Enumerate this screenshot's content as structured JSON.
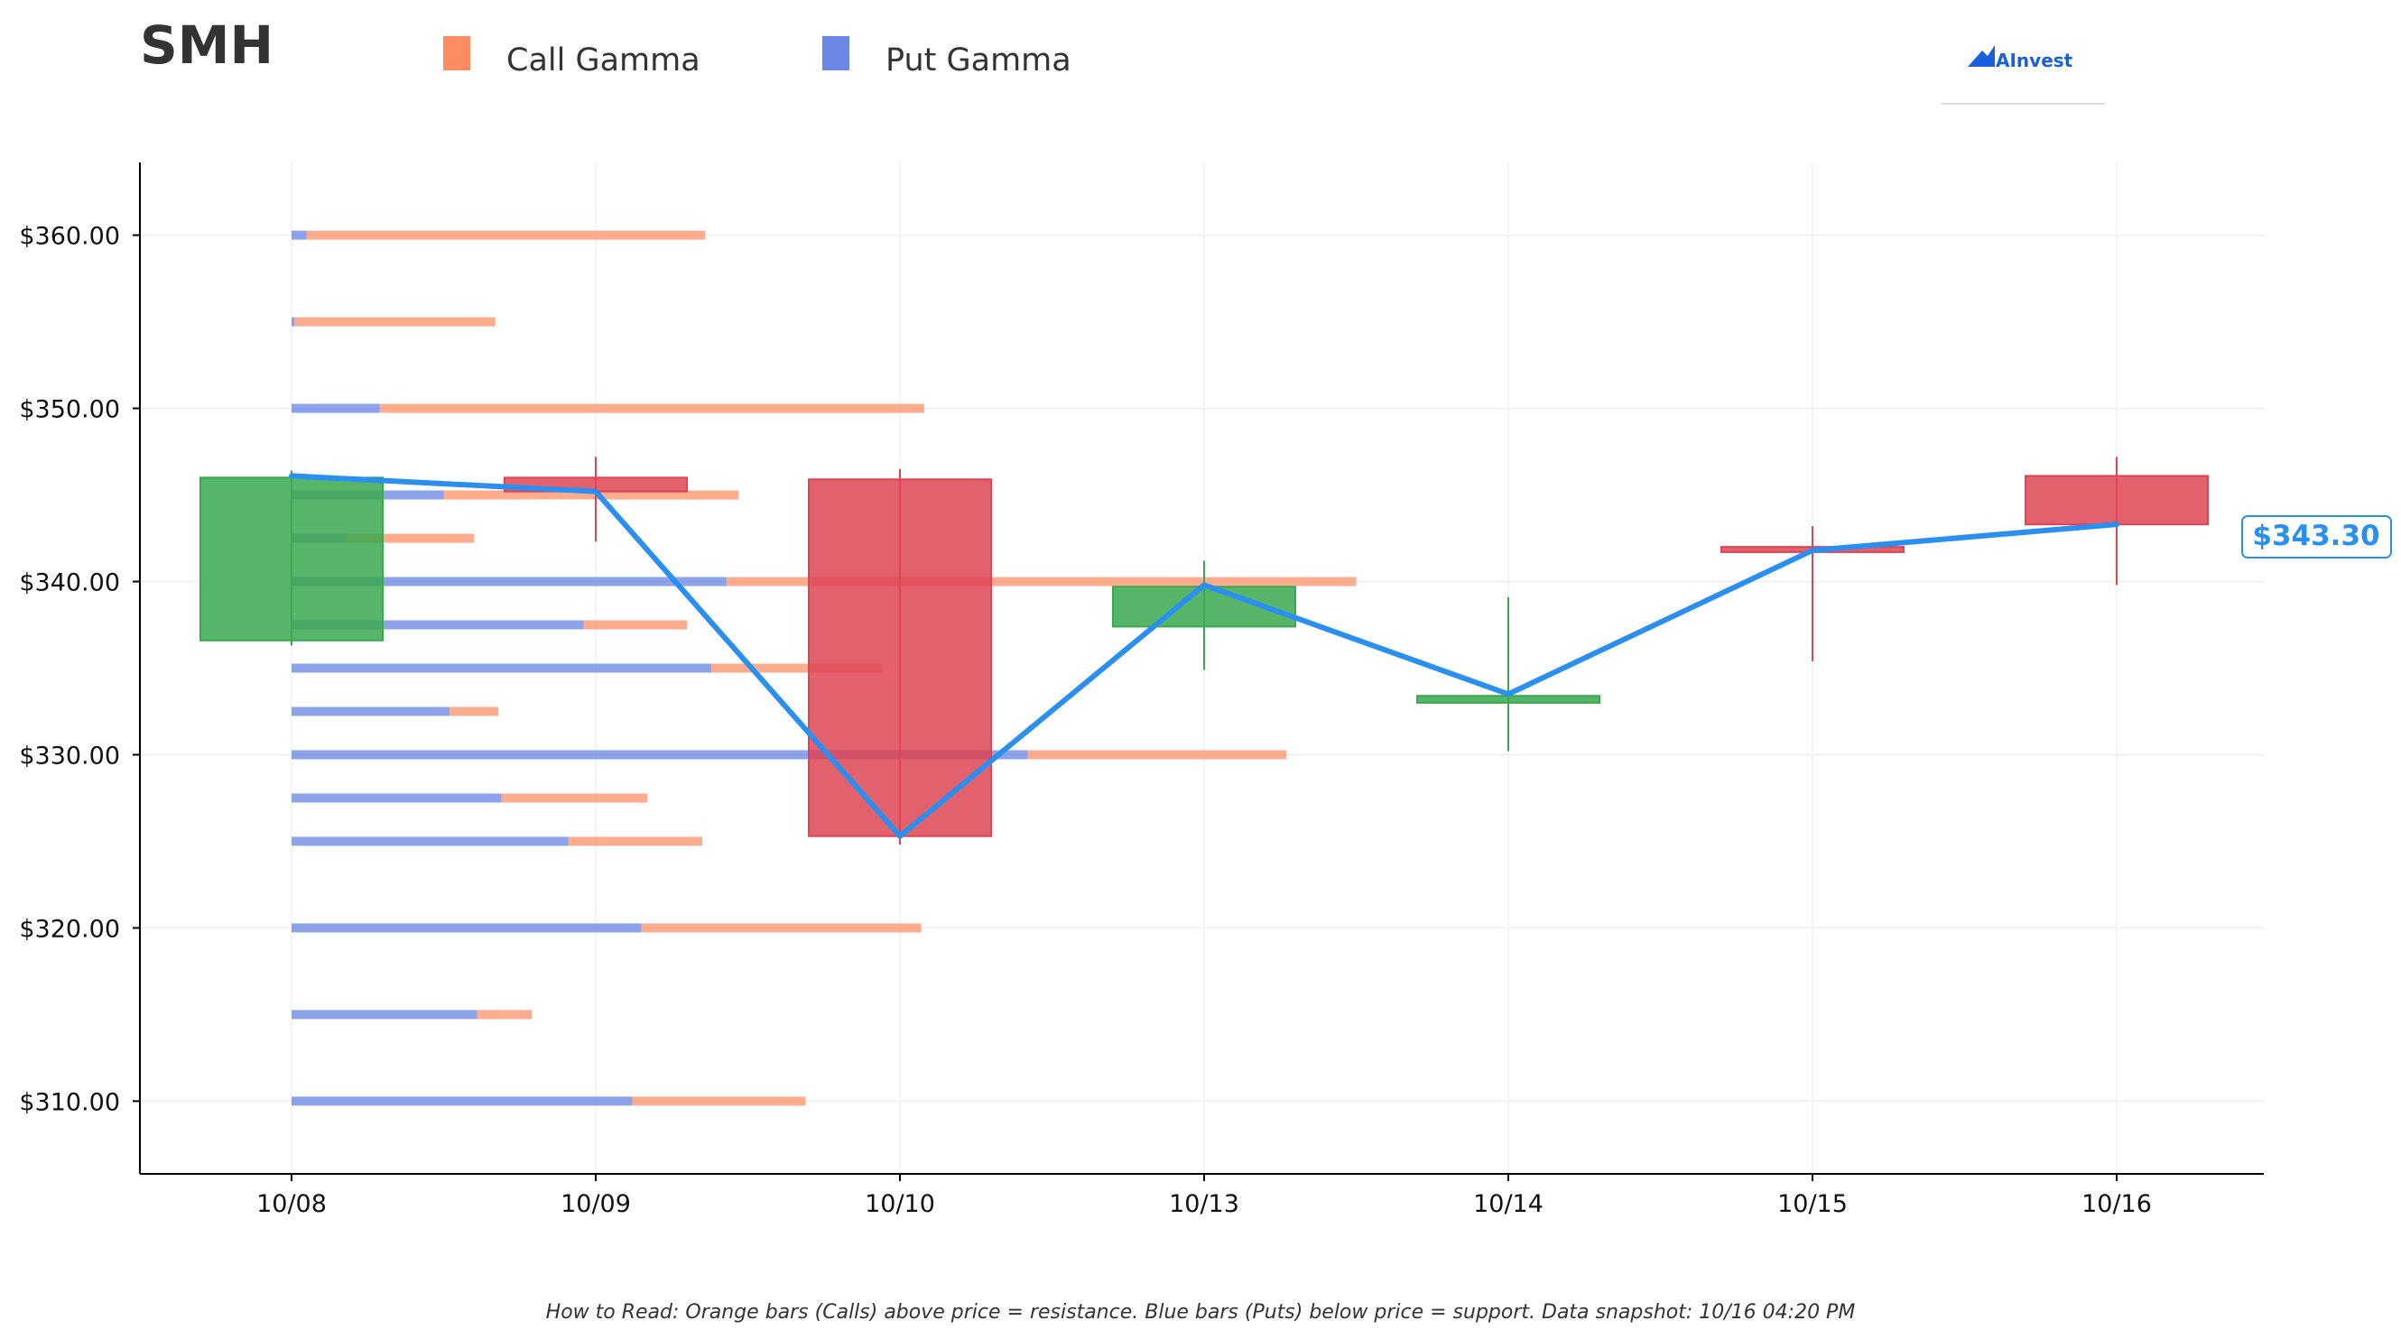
{
  "title": "SMH",
  "legend": {
    "call_label": "Call Gamma",
    "put_label": "Put Gamma"
  },
  "brand": "AInvest",
  "footer": "How to Read: Orange bars (Calls) above price = resistance. Blue bars (Puts) below price = support. Data snapshot: 10/16 04:20 PM",
  "current_price_label": "$343.30",
  "colors": {
    "call": "#fc8d62",
    "put": "#6b88e6",
    "up": "#3aa84f",
    "down": "#de4453",
    "price_line": "#2b8ff0",
    "axis": "#000000"
  },
  "chart_data": {
    "type": "candlestick",
    "categories": [
      "10/08",
      "10/09",
      "10/10",
      "10/13",
      "10/14",
      "10/15",
      "10/16"
    ],
    "ylim": [
      305.8,
      364.2
    ],
    "yticks": [
      310,
      320,
      330,
      340,
      350,
      360
    ],
    "ytick_labels": [
      "$310.00",
      "$320.00",
      "$330.00",
      "$340.00",
      "$350.00",
      "$360.00"
    ],
    "grid": true,
    "legend_position": "top",
    "candles": [
      {
        "date": "10/08",
        "open": 336.6,
        "high": 346.4,
        "low": 336.3,
        "close": 346.0
      },
      {
        "date": "10/09",
        "open": 346.0,
        "high": 347.2,
        "low": 342.3,
        "close": 345.2
      },
      {
        "date": "10/10",
        "open": 345.9,
        "high": 346.5,
        "low": 324.8,
        "close": 325.3
      },
      {
        "date": "10/13",
        "open": 337.4,
        "high": 341.2,
        "low": 334.9,
        "close": 339.7
      },
      {
        "date": "10/14",
        "open": 333.0,
        "high": 339.1,
        "low": 330.2,
        "close": 333.4
      },
      {
        "date": "10/15",
        "open": 342.0,
        "high": 343.2,
        "low": 335.4,
        "close": 341.7
      },
      {
        "date": "10/16",
        "open": 346.1,
        "high": 347.2,
        "low": 339.8,
        "close": 343.3
      }
    ],
    "price_line": [
      346.1,
      345.2,
      325.3,
      339.8,
      333.5,
      341.8,
      343.3
    ],
    "gamma_unit": "days",
    "gamma": [
      {
        "strike": 360.0,
        "put": 0.05,
        "call": 1.31
      },
      {
        "strike": 355.0,
        "put": 0.01,
        "call": 0.66
      },
      {
        "strike": 350.0,
        "put": 0.29,
        "call": 1.79
      },
      {
        "strike": 345.0,
        "put": 0.5,
        "call": 0.97
      },
      {
        "strike": 342.5,
        "put": 0.18,
        "call": 0.42
      },
      {
        "strike": 340.0,
        "put": 1.43,
        "call": 2.07
      },
      {
        "strike": 337.5,
        "put": 0.96,
        "call": 0.34
      },
      {
        "strike": 335.0,
        "put": 1.38,
        "call": 0.56
      },
      {
        "strike": 332.5,
        "put": 0.52,
        "call": 0.16
      },
      {
        "strike": 330.0,
        "put": 2.42,
        "call": 0.85
      },
      {
        "strike": 327.5,
        "put": 0.69,
        "call": 0.48
      },
      {
        "strike": 325.0,
        "put": 0.91,
        "call": 0.44
      },
      {
        "strike": 320.0,
        "put": 1.15,
        "call": 0.92
      },
      {
        "strike": 315.0,
        "put": 0.61,
        "call": 0.18
      },
      {
        "strike": 310.0,
        "put": 1.12,
        "call": 0.57
      }
    ]
  }
}
